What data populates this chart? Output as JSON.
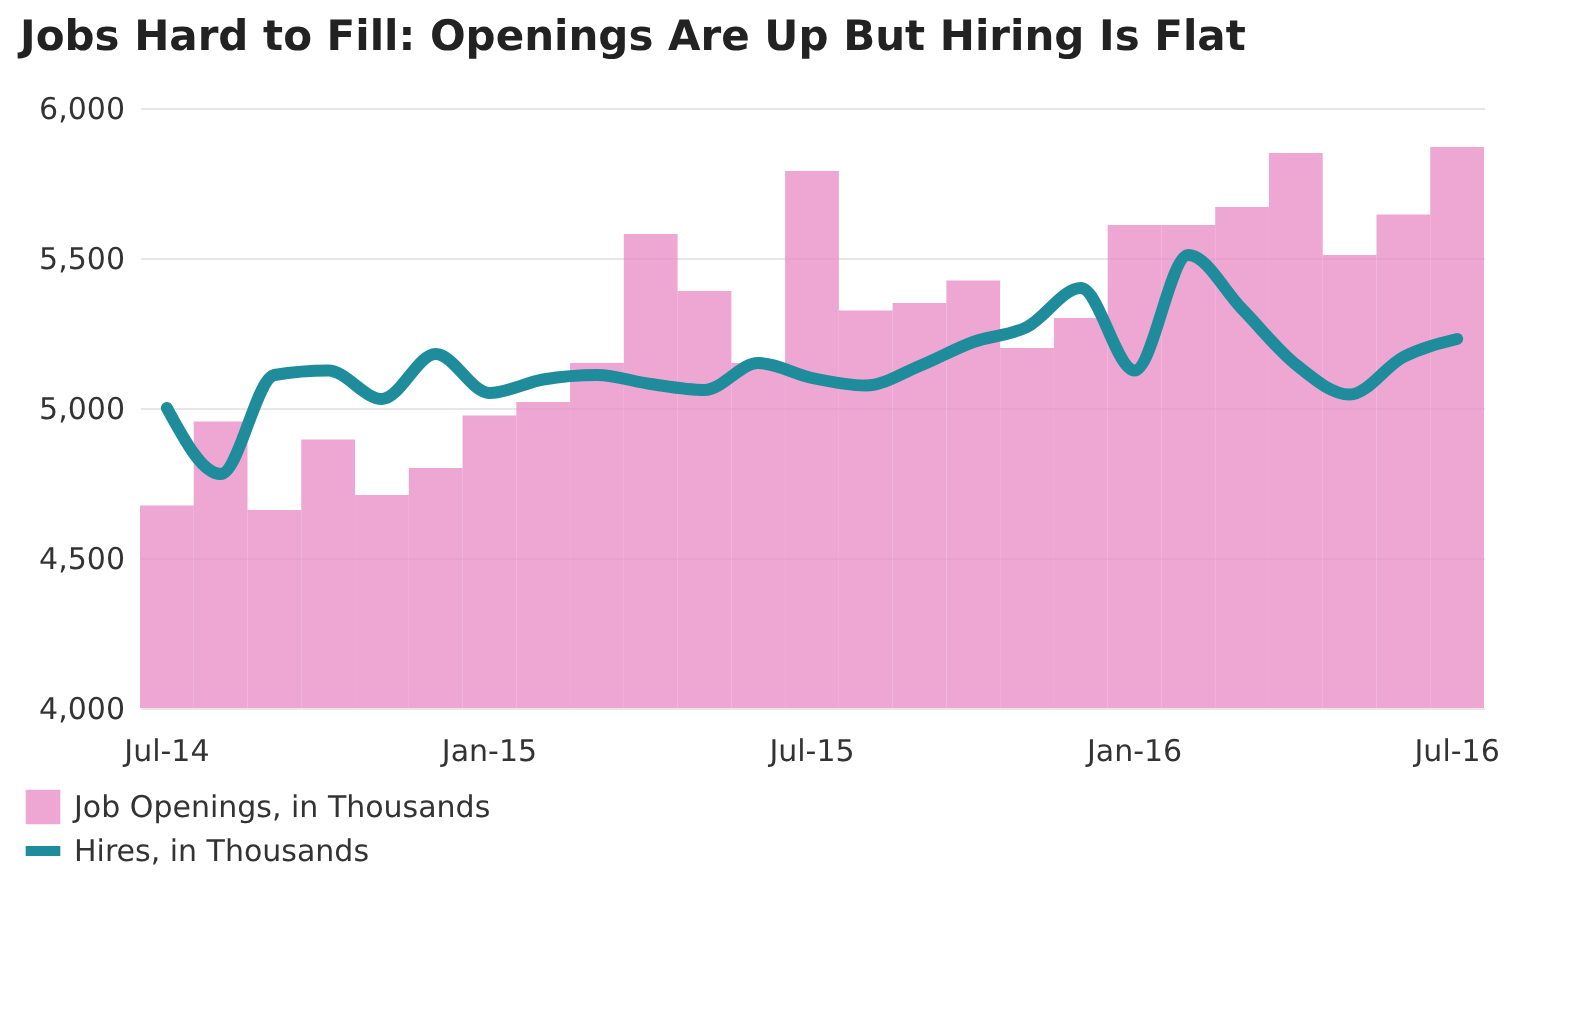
{
  "chart_data": {
    "type": "bar",
    "title": "Jobs Hard to Fill: Openings Are Up But Hiring Is Flat",
    "categories": [
      "Jul-14",
      null,
      null,
      null,
      null,
      null,
      "Jan-15",
      null,
      null,
      null,
      null,
      null,
      "Jul-15",
      null,
      null,
      null,
      null,
      null,
      "Jan-16",
      null,
      null,
      null,
      null,
      null,
      "Jul-16"
    ],
    "series": [
      {
        "name": "Job Openings, in Thousands",
        "color": "#e889c4",
        "values": [
          4675,
          4955,
          4660,
          4895,
          4710,
          4800,
          4975,
          5020,
          5150,
          5580,
          5390,
          5150,
          5790,
          5325,
          5350,
          5425,
          5200,
          5300,
          5610,
          5610,
          5670,
          5850,
          5510,
          5645,
          5870
        ]
      },
      {
        "name": "Hires, in Thousands",
        "type": "line",
        "color": "#1f8c9c",
        "values": [
          5000,
          4780,
          5110,
          5125,
          5030,
          5180,
          5050,
          5095,
          5110,
          5080,
          5060,
          5150,
          5100,
          5075,
          5140,
          5220,
          5270,
          5400,
          5125,
          5510,
          5330,
          5145,
          5045,
          5170,
          5230
        ]
      }
    ],
    "ylim": [
      4000,
      6000
    ],
    "yticks": [
      {
        "value": 4000,
        "label": "4,000"
      },
      {
        "value": 4500,
        "label": "4,500"
      },
      {
        "value": 5000,
        "label": "5,000"
      },
      {
        "value": 5500,
        "label": "5,500"
      },
      {
        "value": 6000,
        "label": "6,000"
      }
    ],
    "grid": "y",
    "legend": "bottom left"
  }
}
